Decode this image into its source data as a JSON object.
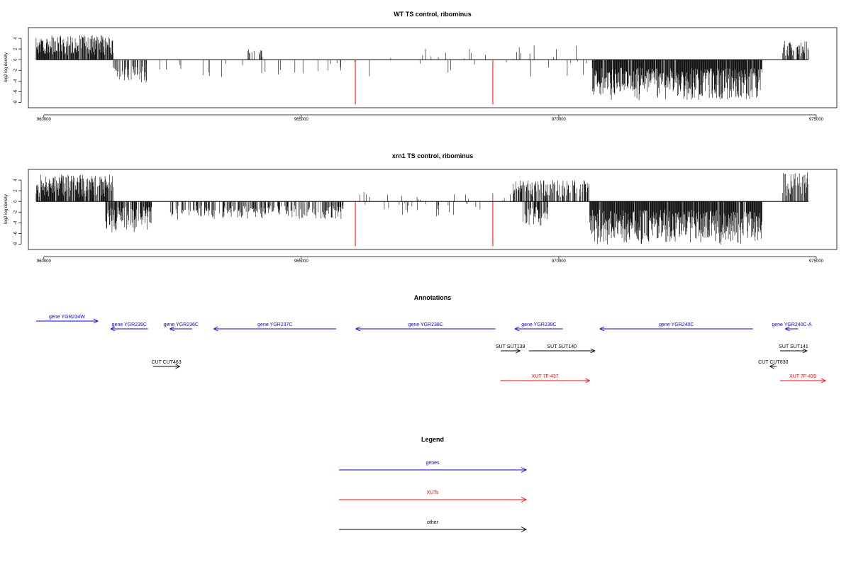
{
  "chart_data": [
    {
      "type": "bar",
      "title": "WT TS control, ribominus",
      "ylabel": "log2 log density",
      "xlabel": "",
      "xlim": [
        959700,
        975400
      ],
      "ylim": [
        -9,
        6
      ],
      "x_ticks": [
        960000,
        965000,
        970000,
        975000
      ],
      "x_tick_labels": [
        "960000",
        "965000",
        "970000",
        "975000"
      ],
      "y_ticks": [
        4,
        2,
        0,
        -2,
        -4,
        -6,
        -8
      ],
      "y_tick_labels": [
        "4",
        "2",
        "0",
        "-2",
        "-4",
        "-6",
        "-8"
      ],
      "baseline": 0,
      "baseline_range": [
        959850,
        974850
      ],
      "bar_color": "#000000",
      "marker_color": "#ff0000",
      "markers": [
        {
          "x": 966050,
          "y": -8.4
        },
        {
          "x": 968720,
          "y": -8.4
        }
      ],
      "segments": [
        {
          "x0": 959850,
          "x1": 961350,
          "density": 0.9,
          "min": 0.8,
          "max": 4.6
        },
        {
          "x0": 961350,
          "x1": 962000,
          "density": 0.55,
          "min": -4.5,
          "max": -1.0
        },
        {
          "x0": 962000,
          "x1": 966000,
          "density": 0.05,
          "min": -3.5,
          "max": -0.5
        },
        {
          "x0": 963950,
          "x1": 964250,
          "density": 0.3,
          "min": 0.5,
          "max": 2.0
        },
        {
          "x0": 966000,
          "x1": 969000,
          "density": 0.04,
          "min": -3.8,
          "max": 2.3
        },
        {
          "x0": 969050,
          "x1": 970700,
          "density": 0.08,
          "min": -3.5,
          "max": 3.2
        },
        {
          "x0": 970650,
          "x1": 973950,
          "density": 0.95,
          "min": -7.6,
          "max": -1.5
        },
        {
          "x0": 974350,
          "x1": 974850,
          "density": 0.5,
          "min": 0.6,
          "max": 3.6
        }
      ]
    },
    {
      "type": "bar",
      "title": "xrn1 TS control, ribominus",
      "ylabel": "log2 log density",
      "xlabel": "",
      "xlim": [
        959700,
        975400
      ],
      "ylim": [
        -9,
        6
      ],
      "x_ticks": [
        960000,
        965000,
        970000,
        975000
      ],
      "x_tick_labels": [
        "960000",
        "965000",
        "970000",
        "975000"
      ],
      "y_ticks": [
        4,
        2,
        0,
        -2,
        -4,
        -6,
        -8
      ],
      "y_tick_labels": [
        "4",
        "2",
        "0",
        "-2",
        "-4",
        "-6",
        "-8"
      ],
      "baseline": 0,
      "baseline_range": [
        959850,
        974850
      ],
      "bar_color": "#000000",
      "marker_color": "#ff0000",
      "markers": [
        {
          "x": 966050,
          "y": -8.4
        },
        {
          "x": 968720,
          "y": -8.4
        }
      ],
      "segments": [
        {
          "x0": 959850,
          "x1": 961350,
          "density": 0.85,
          "min": 0.8,
          "max": 5.0
        },
        {
          "x0": 961200,
          "x1": 962100,
          "density": 0.7,
          "min": -5.8,
          "max": -1.0
        },
        {
          "x0": 962450,
          "x1": 965850,
          "density": 0.45,
          "min": -3.4,
          "max": -0.8
        },
        {
          "x0": 966100,
          "x1": 969000,
          "density": 0.12,
          "min": -3.0,
          "max": 1.8
        },
        {
          "x0": 969050,
          "x1": 970600,
          "density": 0.55,
          "min": 0.6,
          "max": 4.0
        },
        {
          "x0": 969300,
          "x1": 969800,
          "density": 0.5,
          "min": -4.8,
          "max": -1.0
        },
        {
          "x0": 970600,
          "x1": 973950,
          "density": 0.95,
          "min": -8.1,
          "max": -1.5
        },
        {
          "x0": 974350,
          "x1": 974850,
          "density": 0.55,
          "min": 0.8,
          "max": 5.5
        }
      ]
    }
  ],
  "annotations": {
    "title": "Annotations",
    "features": [
      {
        "label": "gene YGR234W",
        "x0": 959850,
        "x1": 961050,
        "row": 0,
        "strand": "+",
        "color": "#0000ff",
        "label_pos": "above"
      },
      {
        "label": "gene YGR235C",
        "x0": 961300,
        "x1": 962020,
        "row": 1,
        "strand": "-",
        "color": "#0000ff",
        "label_pos": "above"
      },
      {
        "label": "gene YGR236C",
        "x0": 962450,
        "x1": 962880,
        "row": 1,
        "strand": "-",
        "color": "#0000ff",
        "label_pos": "above"
      },
      {
        "label": "gene YGR237C",
        "x0": 963300,
        "x1": 965680,
        "row": 1,
        "strand": "-",
        "color": "#0000ff",
        "label_pos": "above"
      },
      {
        "label": "gene YGR238C",
        "x0": 966060,
        "x1": 968770,
        "row": 1,
        "strand": "-",
        "color": "#0000ff",
        "label_pos": "above"
      },
      {
        "label": "gene YGR239C",
        "x0": 969150,
        "x1": 970080,
        "row": 1,
        "strand": "-",
        "color": "#0000ff",
        "label_pos": "above"
      },
      {
        "label": "gene YGR240C",
        "x0": 970800,
        "x1": 973770,
        "row": 1,
        "strand": "-",
        "color": "#0000ff",
        "label_pos": "above"
      },
      {
        "label": "gene YGR240C-A",
        "x0": 974400,
        "x1": 974650,
        "row": 1,
        "strand": "-",
        "color": "#0000ff",
        "label_pos": "above"
      },
      {
        "label": "SUT SUT139",
        "x0": 968870,
        "x1": 969250,
        "row": 2,
        "strand": "+",
        "color": "#000000",
        "label_pos": "above"
      },
      {
        "label": "SUT SUT140",
        "x0": 969420,
        "x1": 970700,
        "row": 2,
        "strand": "+",
        "color": "#000000",
        "label_pos": "above"
      },
      {
        "label": "SUT SUT141",
        "x0": 974300,
        "x1": 974820,
        "row": 2,
        "strand": "+",
        "color": "#000000",
        "label_pos": "above"
      },
      {
        "label": "CUT CUT463",
        "x0": 962120,
        "x1": 962640,
        "row": 3,
        "strand": "+",
        "color": "#000000",
        "label_pos": "above"
      },
      {
        "label": "CUT CUT630",
        "x0": 974100,
        "x1": 974230,
        "row": 3,
        "strand": "-",
        "color": "#000000",
        "label_pos": "above"
      },
      {
        "label": "XUT 7F-437",
        "x0": 968870,
        "x1": 970600,
        "row": 4,
        "strand": "+",
        "color": "#ff0000",
        "label_pos": "above"
      },
      {
        "label": "XUT 7F-439",
        "x0": 974300,
        "x1": 975180,
        "row": 4,
        "strand": "+",
        "color": "#ff0000",
        "label_pos": "above"
      }
    ]
  },
  "legend": {
    "title": "Legend",
    "items": [
      {
        "label": "genes",
        "color": "#0000ff"
      },
      {
        "label": "XUTs",
        "color": "#ff0000"
      },
      {
        "label": "other",
        "color": "#000000"
      }
    ]
  }
}
